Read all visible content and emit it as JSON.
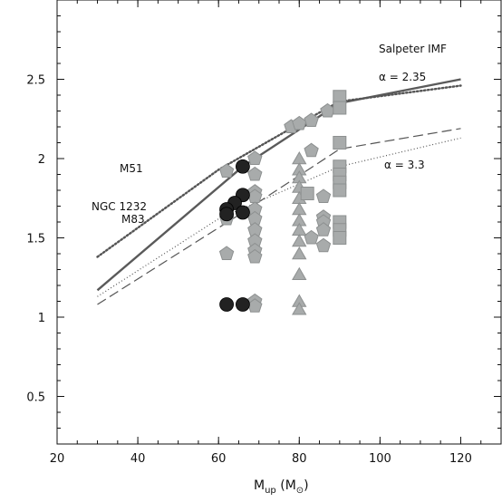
{
  "chart_data": {
    "type": "scatter",
    "title": "",
    "xlabel": {
      "base": "M",
      "sub": "up",
      "unit_open": " (M",
      "unit_sub": "⊙",
      "unit_close": ")"
    },
    "ylabel": "",
    "xlim": [
      20,
      130
    ],
    "ylim": [
      0.2,
      3.0
    ],
    "x_ticks": [
      20,
      40,
      60,
      80,
      100,
      120
    ],
    "y_ticks": [
      0.5,
      1,
      1.5,
      2,
      2.5
    ],
    "x_minor_step": 5,
    "y_minor_step": 0.1,
    "grid": false,
    "annotations": {
      "salpeter": "Salpeter IMF",
      "alpha_235": "α = 2.35",
      "alpha_33": "α = 3.3",
      "m51": "M51",
      "ngc1232": "NGC 1232",
      "m83": "M83"
    },
    "colors": {
      "dark_marker": "#222222",
      "light_marker": "#a8abab",
      "light_edge": "#8d9090",
      "solid_line": "#5a5a5a",
      "dashed_line": "#555555",
      "dotted_line": "#555555"
    },
    "series": [
      {
        "style": "solid",
        "x": [
          30,
          66,
          90,
          120
        ],
        "y": [
          1.17,
          1.95,
          2.35,
          2.5
        ]
      },
      {
        "style": "dotted-heavy",
        "x": [
          30,
          60,
          80,
          90,
          120
        ],
        "y": [
          1.38,
          1.93,
          2.22,
          2.36,
          2.46
        ]
      },
      {
        "style": "dashed",
        "x": [
          30,
          66,
          90,
          120
        ],
        "y": [
          1.08,
          1.66,
          2.06,
          2.19
        ]
      },
      {
        "style": "dotted-light",
        "x": [
          30,
          60,
          90,
          120
        ],
        "y": [
          1.13,
          1.62,
          1.95,
          2.13
        ]
      }
    ],
    "dark_circles": [
      {
        "x": 66,
        "y": 1.95
      },
      {
        "x": 66,
        "y": 1.77
      },
      {
        "x": 64,
        "y": 1.72
      },
      {
        "x": 62,
        "y": 1.68
      },
      {
        "x": 62,
        "y": 1.65
      },
      {
        "x": 66,
        "y": 1.66
      },
      {
        "x": 62,
        "y": 1.08
      },
      {
        "x": 66,
        "y": 1.08
      }
    ],
    "pentagons": [
      {
        "x": 62,
        "y": 1.92
      },
      {
        "x": 62,
        "y": 1.66
      },
      {
        "x": 62,
        "y": 1.62
      },
      {
        "x": 62,
        "y": 1.4
      },
      {
        "x": 69,
        "y": 2.0
      },
      {
        "x": 69,
        "y": 1.9
      },
      {
        "x": 69,
        "y": 1.79
      },
      {
        "x": 69,
        "y": 1.76
      },
      {
        "x": 69,
        "y": 1.68
      },
      {
        "x": 69,
        "y": 1.62
      },
      {
        "x": 69,
        "y": 1.55
      },
      {
        "x": 69,
        "y": 1.48
      },
      {
        "x": 69,
        "y": 1.42
      },
      {
        "x": 69,
        "y": 1.38
      },
      {
        "x": 69,
        "y": 1.1
      },
      {
        "x": 69,
        "y": 1.07
      },
      {
        "x": 78,
        "y": 2.2
      },
      {
        "x": 80,
        "y": 2.22
      },
      {
        "x": 83,
        "y": 2.24
      },
      {
        "x": 83,
        "y": 2.05
      },
      {
        "x": 83,
        "y": 1.5
      },
      {
        "x": 86,
        "y": 1.76
      },
      {
        "x": 86,
        "y": 1.63
      },
      {
        "x": 86,
        "y": 1.6
      },
      {
        "x": 86,
        "y": 1.55
      },
      {
        "x": 86,
        "y": 1.45
      },
      {
        "x": 87,
        "y": 2.3
      }
    ],
    "triangles": [
      {
        "x": 80,
        "y": 2.0
      },
      {
        "x": 80,
        "y": 1.93
      },
      {
        "x": 80,
        "y": 1.88
      },
      {
        "x": 80,
        "y": 1.82
      },
      {
        "x": 80,
        "y": 1.75
      },
      {
        "x": 80,
        "y": 1.68
      },
      {
        "x": 80,
        "y": 1.61
      },
      {
        "x": 80,
        "y": 1.55
      },
      {
        "x": 80,
        "y": 1.48
      },
      {
        "x": 80,
        "y": 1.4
      },
      {
        "x": 80,
        "y": 1.27
      },
      {
        "x": 80,
        "y": 1.1
      },
      {
        "x": 80,
        "y": 1.05
      }
    ],
    "squares": [
      {
        "x": 82,
        "y": 1.78
      },
      {
        "x": 90,
        "y": 2.39
      },
      {
        "x": 90,
        "y": 2.32
      },
      {
        "x": 90,
        "y": 2.1
      },
      {
        "x": 90,
        "y": 1.95
      },
      {
        "x": 90,
        "y": 1.9
      },
      {
        "x": 90,
        "y": 1.85
      },
      {
        "x": 90,
        "y": 1.8
      },
      {
        "x": 90,
        "y": 1.6
      },
      {
        "x": 90,
        "y": 1.55
      },
      {
        "x": 90,
        "y": 1.5
      }
    ]
  }
}
